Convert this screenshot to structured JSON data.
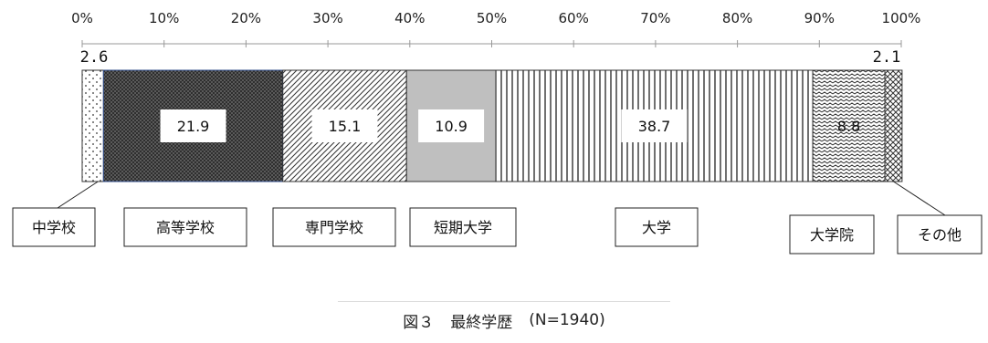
{
  "chart_data": {
    "type": "bar",
    "orientation": "horizontal-stacked-100",
    "xlim": [
      0,
      100
    ],
    "x_ticks": [
      "0%",
      "10%",
      "20%",
      "30%",
      "40%",
      "50%",
      "60%",
      "70%",
      "80%",
      "90%",
      "100%"
    ],
    "series": [
      {
        "name": "中学校",
        "value": 2.6,
        "label": "2.6",
        "pattern": "dots"
      },
      {
        "name": "高等学校",
        "value": 21.9,
        "label": "21.9",
        "pattern": "crosshatch-dark"
      },
      {
        "name": "専門学校",
        "value": 15.1,
        "label": "15.1",
        "pattern": "diagonal"
      },
      {
        "name": "短期大学",
        "value": 10.9,
        "label": "10.9",
        "pattern": "solid-gray"
      },
      {
        "name": "大学",
        "value": 38.7,
        "label": "38.7",
        "pattern": "vertical-lines"
      },
      {
        "name": "大学院",
        "value": 8.8,
        "label": "8.8",
        "pattern": "wave"
      },
      {
        "name": "その他",
        "value": 2.1,
        "label": "2.1",
        "pattern": "zigzag"
      }
    ],
    "caption": {
      "figure": "図３",
      "title": "最終学歴",
      "n": "(N=1940)"
    }
  }
}
